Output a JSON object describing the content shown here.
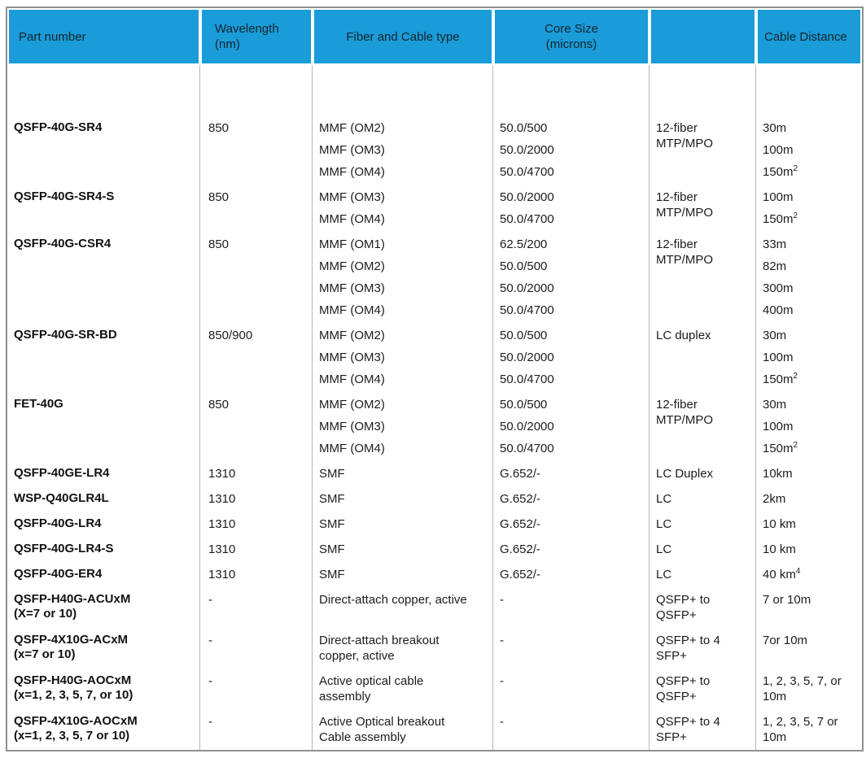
{
  "colors": {
    "header_bg": "#199cd8",
    "header_text": "#15242e",
    "grid_line": "#b5b7ba",
    "outer_border": "#8f9194"
  },
  "header": {
    "columns": [
      {
        "label": "Part number"
      },
      {
        "label": "Wavelength\n(nm)"
      },
      {
        "label": "Fiber and Cable type"
      },
      {
        "label": "Core Size\n(microns)"
      },
      {
        "label": ""
      },
      {
        "label": "Cable Distance"
      }
    ]
  },
  "rows": [
    {
      "spacer": true,
      "height": 62,
      "part": [],
      "wavelength": [],
      "fiber": [],
      "core": [],
      "connector": [],
      "distance": []
    },
    {
      "part": [
        "QSFP-40G-SR4"
      ],
      "wavelength": [
        "850"
      ],
      "fiber": [
        "MMF (OM2)",
        "MMF (OM3)",
        "MMF (OM4)"
      ],
      "core": [
        "50.0/500",
        "50.0/2000",
        "50.0/4700"
      ],
      "connector": [
        "12-fiber\nMTP/MPO"
      ],
      "distance": [
        "30m",
        "100m",
        "150m^2"
      ]
    },
    {
      "part": [
        "QSFP-40G-SR4-S"
      ],
      "wavelength": [
        "850"
      ],
      "fiber": [
        "MMF (OM3)",
        "MMF (OM4)"
      ],
      "core": [
        "50.0/2000",
        "50.0/4700"
      ],
      "connector": [
        "12-fiber\nMTP/MPO"
      ],
      "distance": [
        "100m",
        "150m^2"
      ]
    },
    {
      "part": [
        "QSFP-40G-CSR4"
      ],
      "wavelength": [
        "850"
      ],
      "fiber": [
        "MMF (OM1)",
        "MMF (OM2)",
        "MMF (OM3)",
        "MMF (OM4)"
      ],
      "core": [
        "62.5/200",
        "50.0/500",
        "50.0/2000",
        "50.0/4700"
      ],
      "connector": [
        "12-fiber\nMTP/MPO"
      ],
      "distance": [
        "33m",
        "82m",
        "300m",
        "400m"
      ]
    },
    {
      "part": [
        "QSFP-40G-SR-BD"
      ],
      "wavelength": [
        "850/900"
      ],
      "fiber": [
        "MMF (OM2)",
        "MMF (OM3)",
        "MMF (OM4)"
      ],
      "core": [
        "50.0/500",
        "50.0/2000",
        "50.0/4700"
      ],
      "connector": [
        "LC duplex"
      ],
      "distance": [
        "30m",
        "100m",
        "150m^2"
      ]
    },
    {
      "part": [
        "FET-40G"
      ],
      "wavelength": [
        "850"
      ],
      "fiber": [
        "MMF (OM2)",
        "MMF (OM3)",
        "MMF (OM4)"
      ],
      "core": [
        "50.0/500",
        "50.0/2000",
        "50.0/4700"
      ],
      "connector": [
        "12-fiber\nMTP/MPO"
      ],
      "distance": [
        "30m",
        "100m",
        "150m^2"
      ]
    },
    {
      "part": [
        "QSFP-40GE-LR4"
      ],
      "wavelength": [
        "1310"
      ],
      "fiber": [
        "SMF"
      ],
      "core": [
        "G.652/-"
      ],
      "connector": [
        "LC Duplex"
      ],
      "distance": [
        "10km"
      ]
    },
    {
      "part": [
        "WSP-Q40GLR4L"
      ],
      "wavelength": [
        "1310"
      ],
      "fiber": [
        "SMF"
      ],
      "core": [
        "G.652/-"
      ],
      "connector": [
        "LC"
      ],
      "distance": [
        "2km"
      ]
    },
    {
      "part": [
        "QSFP-40G-LR4"
      ],
      "wavelength": [
        "1310"
      ],
      "fiber": [
        "SMF"
      ],
      "core": [
        "G.652/-"
      ],
      "connector": [
        "LC"
      ],
      "distance": [
        "10 km"
      ]
    },
    {
      "part": [
        "QSFP-40G-LR4-S"
      ],
      "wavelength": [
        "1310"
      ],
      "fiber": [
        "SMF"
      ],
      "core": [
        "G.652/-"
      ],
      "connector": [
        "LC"
      ],
      "distance": [
        "10 km"
      ]
    },
    {
      "part": [
        "QSFP-40G-ER4"
      ],
      "wavelength": [
        "1310"
      ],
      "fiber": [
        "SMF"
      ],
      "core": [
        "G.652/-"
      ],
      "connector": [
        "LC"
      ],
      "distance": [
        "40 km^4"
      ]
    },
    {
      "part": [
        "QSFP-H40G-ACUxM\n(X=7 or 10)"
      ],
      "wavelength": [
        "-"
      ],
      "fiber": [
        "Direct-attach copper, active"
      ],
      "core": [
        "-"
      ],
      "connector": [
        "QSFP+ to\nQSFP+"
      ],
      "distance": [
        "7 or 10m"
      ]
    },
    {
      "part": [
        "QSFP-4X10G-ACxM\n(x=7 or 10)"
      ],
      "wavelength": [
        "-"
      ],
      "fiber": [
        "Direct-attach breakout\ncopper, active"
      ],
      "core": [
        "-"
      ],
      "connector": [
        "QSFP+ to 4\nSFP+"
      ],
      "distance": [
        "7or 10m"
      ]
    },
    {
      "part": [
        "QSFP-H40G-AOCxM\n(x=1, 2, 3, 5, 7, or 10)"
      ],
      "wavelength": [
        "-"
      ],
      "fiber": [
        "Active optical cable\nassembly"
      ],
      "core": [
        "-"
      ],
      "connector": [
        "QSFP+ to\nQSFP+"
      ],
      "distance": [
        "1, 2, 3, 5, 7, or\n10m"
      ]
    },
    {
      "part": [
        "QSFP-4X10G-AOCxM\n(x=1, 2, 3, 5, 7 or 10)"
      ],
      "wavelength": [
        "-"
      ],
      "fiber": [
        "Active Optical breakout\nCable assembly"
      ],
      "core": [
        "-"
      ],
      "connector": [
        "QSFP+ to 4\nSFP+"
      ],
      "distance": [
        "1, 2, 3, 5, 7 or\n10m"
      ]
    }
  ]
}
